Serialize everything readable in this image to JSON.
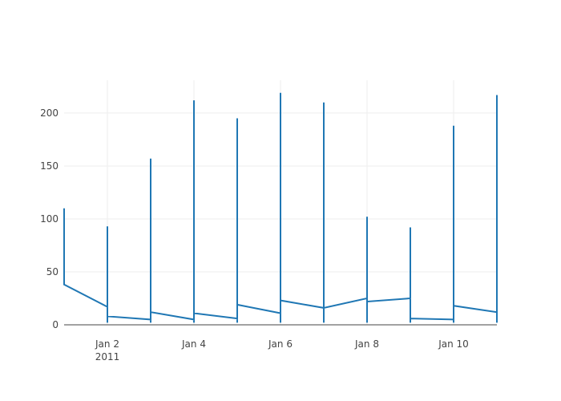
{
  "chart_data": {
    "type": "line",
    "x": [
      "2011-01-01",
      "2011-01-01",
      "2011-01-02",
      "2011-01-02",
      "2011-01-02",
      "2011-01-02",
      "2011-01-03",
      "2011-01-03",
      "2011-01-03",
      "2011-01-03",
      "2011-01-04",
      "2011-01-04",
      "2011-01-04",
      "2011-01-04",
      "2011-01-05",
      "2011-01-05",
      "2011-01-05",
      "2011-01-05",
      "2011-01-06",
      "2011-01-06",
      "2011-01-06",
      "2011-01-06",
      "2011-01-07",
      "2011-01-07",
      "2011-01-07",
      "2011-01-07",
      "2011-01-08",
      "2011-01-08",
      "2011-01-08",
      "2011-01-08",
      "2011-01-09",
      "2011-01-09",
      "2011-01-09",
      "2011-01-09",
      "2011-01-10",
      "2011-01-10",
      "2011-01-10",
      "2011-01-10",
      "2011-01-11",
      "2011-01-11",
      "2011-01-11"
    ],
    "values": [
      110,
      38,
      17,
      93,
      2,
      8,
      5,
      157,
      2,
      12,
      5,
      212,
      2,
      11,
      6,
      195,
      2,
      19,
      11,
      219,
      2,
      23,
      16,
      210,
      2,
      16,
      25,
      102,
      2,
      22,
      25,
      92,
      2,
      6,
      5,
      188,
      2,
      18,
      12,
      217,
      2
    ],
    "color": "#1f77b4",
    "xlim": [
      "2011-01-01",
      "2011-01-11"
    ],
    "xticks": [
      {
        "value": "2011-01-02",
        "label": "Jan 2"
      },
      {
        "value": "2011-01-04",
        "label": "Jan 4"
      },
      {
        "value": "2011-01-06",
        "label": "Jan 6"
      },
      {
        "value": "2011-01-08",
        "label": "Jan 8"
      },
      {
        "value": "2011-01-10",
        "label": "Jan 10"
      }
    ],
    "x_year_label": "2011",
    "ylim": [
      0,
      231
    ],
    "yticks": [
      0,
      50,
      100,
      150,
      200
    ],
    "grid": true
  }
}
